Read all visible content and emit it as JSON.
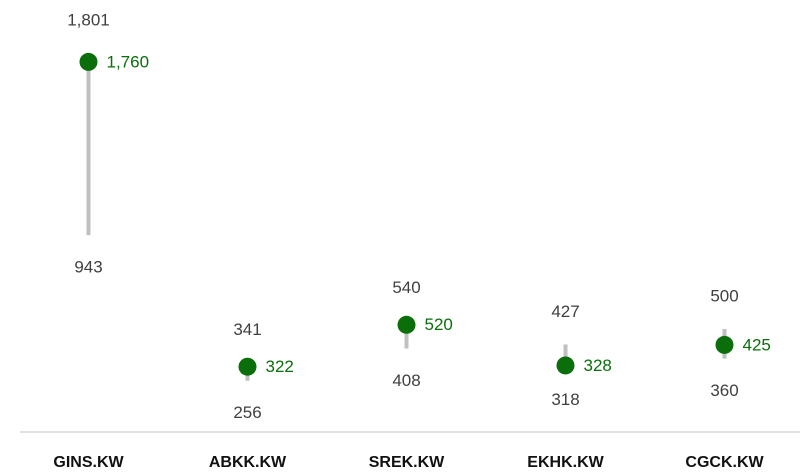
{
  "chart_data": {
    "type": "range",
    "categories": [
      "GINS.KW",
      "ABKK.KW",
      "SREK.KW",
      "EKHK.KW",
      "CGCK.KW"
    ],
    "high": [
      1801,
      341,
      540,
      427,
      500
    ],
    "high_labels": [
      "1,801",
      "341",
      "540",
      "427",
      "500"
    ],
    "low": [
      943,
      256,
      408,
      318,
      360
    ],
    "low_labels": [
      "943",
      "256",
      "408",
      "318",
      "360"
    ],
    "values": [
      1760,
      322,
      520,
      328,
      425
    ],
    "value_labels": [
      "1,760",
      "322",
      "520",
      "328",
      "425"
    ],
    "range_color": "#c0c0c0",
    "color": "#0a6e0a",
    "ylim": [
      0,
      2000
    ]
  }
}
